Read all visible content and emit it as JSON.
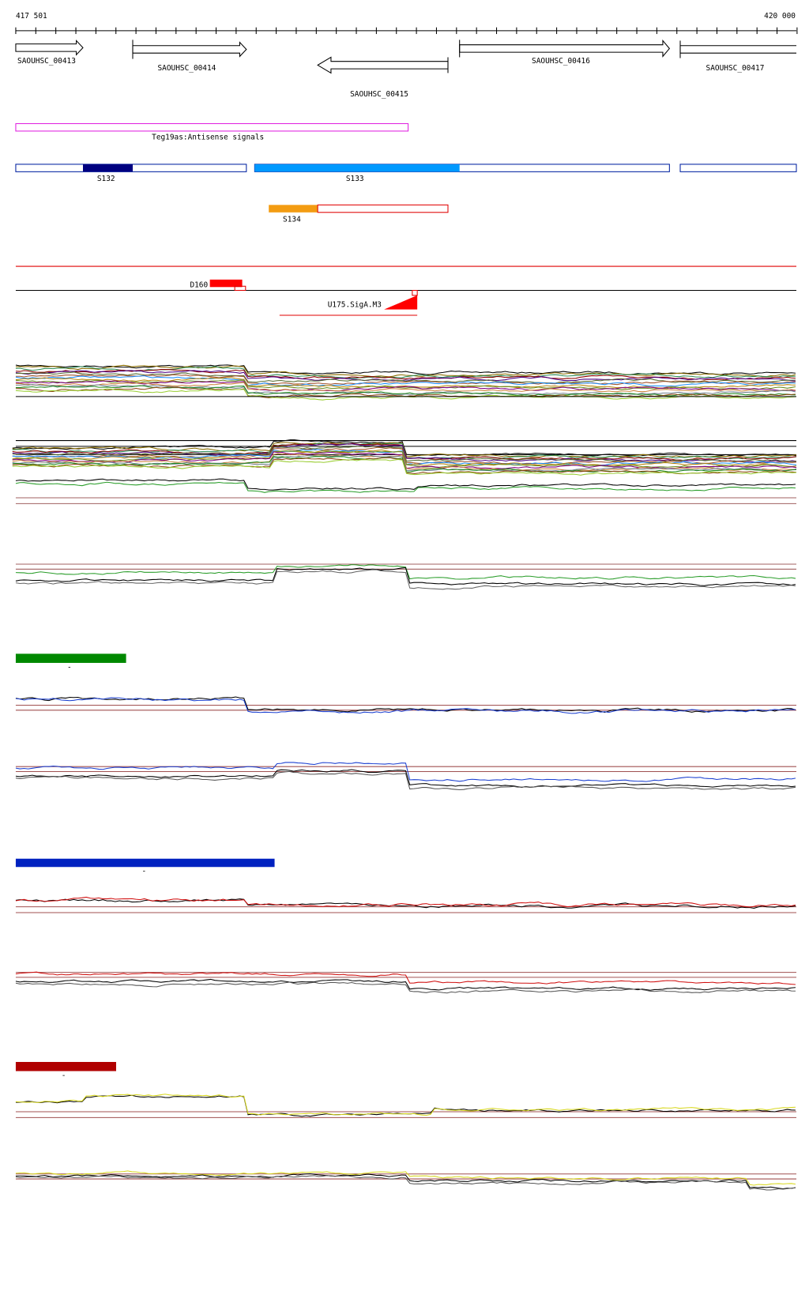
{
  "header": {
    "start": "417 501",
    "end": "420 000"
  },
  "genes": [
    {
      "label": "SAOUHSC_00413"
    },
    {
      "label": "SAOUHSC_00414"
    },
    {
      "label": "SAOUHSC_00415"
    },
    {
      "label": "SAOUHSC_00416"
    },
    {
      "label": "SAOUHSC_00417"
    }
  ],
  "tracks": {
    "antisense": "Teg19as:Antisense signals",
    "segments": [
      "S132",
      "S133",
      "S134"
    ],
    "d160": "D160",
    "u175": "U175.SigA.M3",
    "legend_labels": [
      "-",
      "-",
      "-"
    ]
  }
}
